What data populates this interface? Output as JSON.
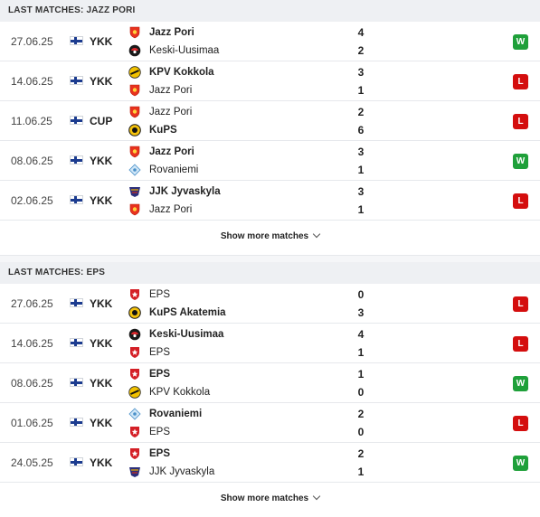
{
  "colors": {
    "win": "#1fa03a",
    "loss": "#d40e0e",
    "header_bg": "#eef0f3"
  },
  "sections": [
    {
      "title": "LAST MATCHES: JAZZ PORI",
      "show_more": "Show more matches",
      "matches": [
        {
          "date": "27.06.25",
          "flag": "finland-flag",
          "comp": "YKK",
          "home": {
            "name": "Jazz Pori",
            "crest": "jazz",
            "bold": true
          },
          "away": {
            "name": "Keski-Uusimaa",
            "crest": "keski",
            "bold": false
          },
          "home_score": "4",
          "away_score": "2",
          "result": "W"
        },
        {
          "date": "14.06.25",
          "flag": "finland-flag",
          "comp": "YKK",
          "home": {
            "name": "KPV Kokkola",
            "crest": "kpv",
            "bold": true
          },
          "away": {
            "name": "Jazz Pori",
            "crest": "jazz",
            "bold": false
          },
          "home_score": "3",
          "away_score": "1",
          "result": "L"
        },
        {
          "date": "11.06.25",
          "flag": "finland-flag",
          "comp": "CUP",
          "home": {
            "name": "Jazz Pori",
            "crest": "jazz",
            "bold": false
          },
          "away": {
            "name": "KuPS",
            "crest": "kups",
            "bold": true
          },
          "home_score": "2",
          "away_score": "6",
          "result": "L"
        },
        {
          "date": "08.06.25",
          "flag": "finland-flag",
          "comp": "YKK",
          "home": {
            "name": "Jazz Pori",
            "crest": "jazz",
            "bold": true
          },
          "away": {
            "name": "Rovaniemi",
            "crest": "rova",
            "bold": false
          },
          "home_score": "3",
          "away_score": "1",
          "result": "W"
        },
        {
          "date": "02.06.25",
          "flag": "finland-flag",
          "comp": "YKK",
          "home": {
            "name": "JJK Jyvaskyla",
            "crest": "jjk",
            "bold": true
          },
          "away": {
            "name": "Jazz Pori",
            "crest": "jazz",
            "bold": false
          },
          "home_score": "3",
          "away_score": "1",
          "result": "L"
        }
      ]
    },
    {
      "title": "LAST MATCHES: EPS",
      "show_more": "Show more matches",
      "matches": [
        {
          "date": "27.06.25",
          "flag": "finland-flag",
          "comp": "YKK",
          "home": {
            "name": "EPS",
            "crest": "eps",
            "bold": false
          },
          "away": {
            "name": "KuPS Akatemia",
            "crest": "kups",
            "bold": true
          },
          "home_score": "0",
          "away_score": "3",
          "result": "L"
        },
        {
          "date": "14.06.25",
          "flag": "finland-flag",
          "comp": "YKK",
          "home": {
            "name": "Keski-Uusimaa",
            "crest": "keski",
            "bold": true
          },
          "away": {
            "name": "EPS",
            "crest": "eps",
            "bold": false
          },
          "home_score": "4",
          "away_score": "1",
          "result": "L"
        },
        {
          "date": "08.06.25",
          "flag": "finland-flag",
          "comp": "YKK",
          "home": {
            "name": "EPS",
            "crest": "eps",
            "bold": true
          },
          "away": {
            "name": "KPV Kokkola",
            "crest": "kpv",
            "bold": false
          },
          "home_score": "1",
          "away_score": "0",
          "result": "W"
        },
        {
          "date": "01.06.25",
          "flag": "finland-flag",
          "comp": "YKK",
          "home": {
            "name": "Rovaniemi",
            "crest": "rova",
            "bold": true
          },
          "away": {
            "name": "EPS",
            "crest": "eps",
            "bold": false
          },
          "home_score": "2",
          "away_score": "0",
          "result": "L"
        },
        {
          "date": "24.05.25",
          "flag": "finland-flag",
          "comp": "YKK",
          "home": {
            "name": "EPS",
            "crest": "eps",
            "bold": true
          },
          "away": {
            "name": "JJK Jyvaskyla",
            "crest": "jjk",
            "bold": false
          },
          "home_score": "2",
          "away_score": "1",
          "result": "W"
        }
      ]
    }
  ]
}
